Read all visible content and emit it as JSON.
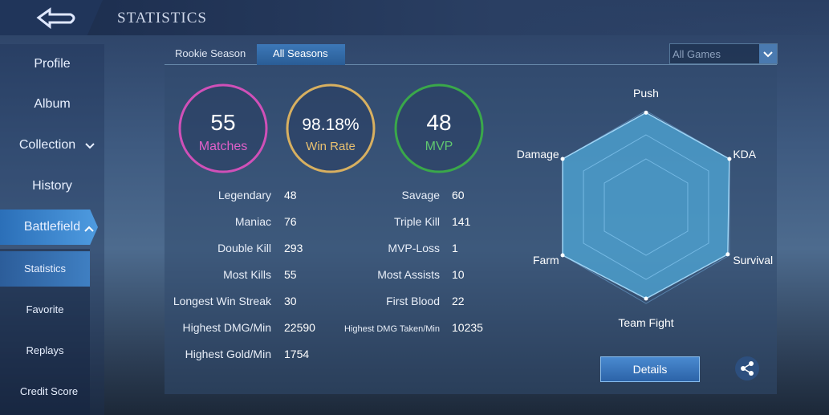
{
  "header": {
    "title": "STATISTICS"
  },
  "sidebar": {
    "items": [
      "Profile",
      "Album",
      "Collection",
      "History",
      "Battlefield"
    ],
    "subitems": [
      "Statistics",
      "Favorite",
      "Replays",
      "Credit Score"
    ]
  },
  "tabs": [
    "Rookie Season",
    "All Seasons"
  ],
  "filter": "All Games",
  "summary": [
    {
      "value": 55,
      "label": "Matches"
    },
    {
      "value": "98.18%",
      "label": "Win Rate"
    },
    {
      "value": 48,
      "label": "MVP"
    }
  ],
  "stats": {
    "left": [
      [
        "Legendary",
        48
      ],
      [
        "Maniac",
        76
      ],
      [
        "Double Kill",
        293
      ],
      [
        "Most Kills",
        55
      ],
      [
        "Longest Win Streak",
        30
      ],
      [
        "Highest DMG/Min",
        22590
      ],
      [
        "Highest Gold/Min",
        1754
      ]
    ],
    "right": [
      [
        "Savage",
        60
      ],
      [
        "Triple Kill",
        141
      ],
      [
        "MVP-Loss",
        1
      ],
      [
        "Most Assists",
        10
      ],
      [
        "First Blood",
        22
      ],
      [
        "Highest DMG Taken/Min",
        10235
      ]
    ]
  },
  "chart_data": {
    "type": "radar",
    "categories": [
      "Push",
      "KDA",
      "Survival",
      "Team Fight",
      "Farm",
      "Damage"
    ],
    "values": [
      98,
      100,
      98,
      95,
      100,
      100
    ],
    "rlim": [
      0,
      100
    ],
    "color": "#4fa8d8"
  },
  "button": "Details"
}
